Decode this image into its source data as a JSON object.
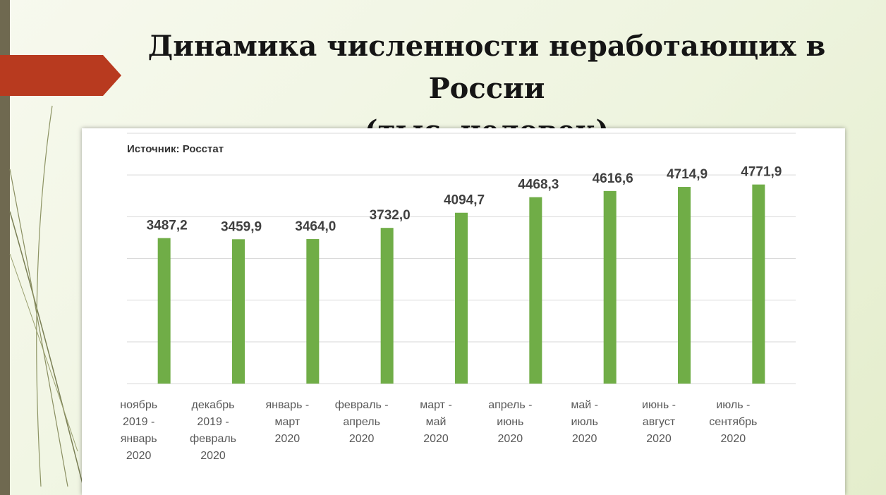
{
  "title": {
    "line1": "Динамика численности неработающих в России",
    "line2": "(тыс. человек)"
  },
  "colors": {
    "bar": "#70ad47",
    "accent_tab": "#b83a1f",
    "side_bar": "#6f6950"
  },
  "chart_data": {
    "type": "bar",
    "subtitle": "Источник: Росстат",
    "categories": [
      [
        "ноябрь",
        "2019 -",
        "январь",
        "2020"
      ],
      [
        "декабрь",
        "2019 -",
        "февраль",
        "2020"
      ],
      [
        "январь -",
        "март",
        "2020"
      ],
      [
        "февраль -",
        "апрель",
        "2020"
      ],
      [
        "март -",
        "май",
        "2020"
      ],
      [
        "апрель -",
        "июнь",
        "2020"
      ],
      [
        "май -",
        "июль",
        "2020"
      ],
      [
        "июнь -",
        "август",
        "2020"
      ],
      [
        "июль -",
        "сентябрь",
        "2020"
      ]
    ],
    "values": [
      3487.2,
      3459.9,
      3464.0,
      3732.0,
      4094.7,
      4468.3,
      4616.6,
      4714.9,
      4771.9
    ],
    "value_labels": [
      "3487,2",
      "3459,9",
      "3464,0",
      "3732,0",
      "4094,7",
      "4468,3",
      "4616,6",
      "4714,9",
      "4771,9"
    ],
    "ylim": [
      0,
      6000
    ],
    "grid": true,
    "legend": "none"
  }
}
